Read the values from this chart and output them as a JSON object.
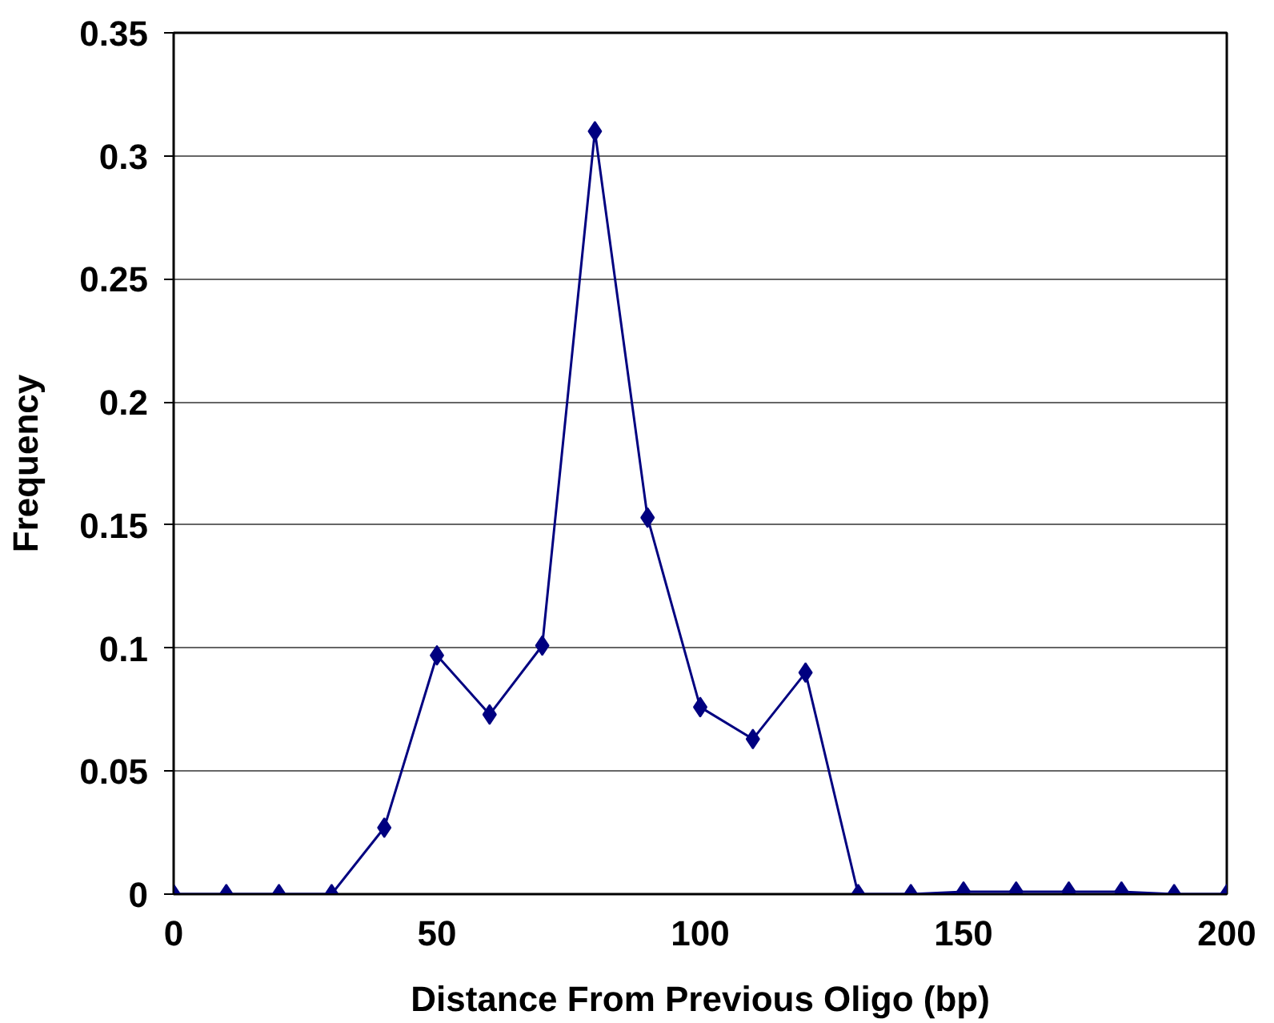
{
  "chart_data": {
    "type": "line",
    "xlabel": "Distance From Previous Oligo (bp)",
    "ylabel": "Frequency",
    "x": [
      0,
      10,
      20,
      30,
      40,
      50,
      60,
      70,
      80,
      90,
      100,
      110,
      120,
      130,
      140,
      150,
      160,
      170,
      180,
      190,
      200
    ],
    "series": [
      {
        "color": "#000080",
        "values": [
          0,
          0,
          0,
          0,
          0.027,
          0.097,
          0.073,
          0.101,
          0.31,
          0.153,
          0.076,
          0.063,
          0.09,
          0,
          0,
          0.001,
          0.001,
          0.001,
          0.001,
          0,
          0
        ]
      }
    ],
    "xlim": [
      0,
      200
    ],
    "xticks": [
      0,
      50,
      100,
      150,
      200
    ],
    "ylim": [
      0,
      0.35
    ],
    "yticks": [
      0,
      0.05,
      0.1,
      0.15,
      0.2,
      0.25,
      0.3,
      0.35
    ],
    "grid": "y",
    "marker": "diamond",
    "line_style": "solid"
  }
}
